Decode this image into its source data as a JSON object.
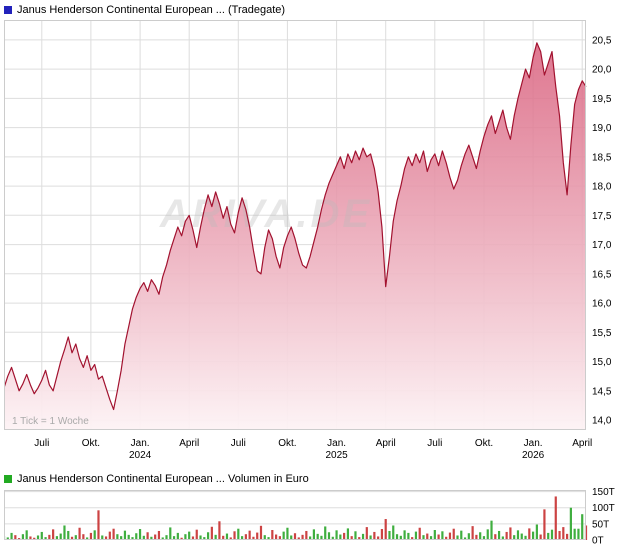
{
  "price_header": {
    "title": "Janus Henderson Continental European ... (Tradegate)",
    "marker_color": "#2222bb"
  },
  "volume_header": {
    "title": "Janus Henderson Continental European ... Volumen in Euro",
    "marker_color": "#22aa22"
  },
  "tick_note": "1 Tick = 1 Woche",
  "watermark": "ARIVA.DE",
  "colors": {
    "grid": "#dddddd",
    "plot_border": "#cccccc",
    "axis_text": "#000000",
    "tick_note_text": "#aaaaaa"
  },
  "chart_data": [
    {
      "type": "area",
      "title": "Janus Henderson Continental European ... (Tradegate)",
      "x_unit": "1 tick = 1 week, late April 2023 to April 2026",
      "ylabel": "Price (EUR)",
      "ylim": [
        13.83,
        20.84
      ],
      "line_color": "#a2122f",
      "fill_top": "#d9607d",
      "fill_bottom": "#fdf3f5",
      "y_ticks": [
        {
          "v": 20.5,
          "label": "20,5"
        },
        {
          "v": 20.0,
          "label": "20,0"
        },
        {
          "v": 19.5,
          "label": "19,5"
        },
        {
          "v": 19.0,
          "label": "19,0"
        },
        {
          "v": 18.5,
          "label": "18,5"
        },
        {
          "v": 18.0,
          "label": "18,0"
        },
        {
          "v": 17.5,
          "label": "17,5"
        },
        {
          "v": 17.0,
          "label": "17,0"
        },
        {
          "v": 16.5,
          "label": "16,5"
        },
        {
          "v": 16.0,
          "label": "16,0"
        },
        {
          "v": 15.5,
          "label": "15,5"
        },
        {
          "v": 15.0,
          "label": "15,0"
        },
        {
          "v": 14.5,
          "label": "14,5"
        },
        {
          "v": 14.0,
          "label": "14,0"
        }
      ],
      "x_ticks": [
        {
          "idx": 10,
          "label": "Juli"
        },
        {
          "idx": 23,
          "label": "Okt."
        },
        {
          "idx": 36,
          "label": "Jan.",
          "year": "2024"
        },
        {
          "idx": 49,
          "label": "April"
        },
        {
          "idx": 62,
          "label": "Juli"
        },
        {
          "idx": 75,
          "label": "Okt."
        },
        {
          "idx": 88,
          "label": "Jan.",
          "year": "2025"
        },
        {
          "idx": 101,
          "label": "April"
        },
        {
          "idx": 114,
          "label": "Juli"
        },
        {
          "idx": 127,
          "label": "Okt."
        },
        {
          "idx": 140,
          "label": "Jan.",
          "year": "2026"
        },
        {
          "idx": 153,
          "label": "April"
        }
      ],
      "values": [
        14.55,
        14.75,
        14.9,
        14.7,
        14.5,
        14.62,
        14.78,
        14.6,
        14.45,
        14.55,
        14.68,
        14.85,
        14.6,
        14.5,
        14.75,
        15.0,
        15.2,
        15.42,
        15.15,
        15.3,
        15.05,
        14.9,
        15.1,
        14.85,
        14.95,
        14.7,
        14.75,
        14.55,
        14.35,
        14.18,
        14.5,
        14.85,
        15.3,
        15.6,
        15.9,
        16.1,
        16.25,
        16.35,
        16.2,
        16.4,
        16.3,
        16.15,
        16.45,
        16.65,
        16.9,
        17.1,
        17.3,
        17.15,
        17.4,
        17.5,
        17.25,
        16.95,
        17.3,
        17.6,
        17.85,
        17.65,
        17.9,
        17.7,
        17.45,
        17.65,
        17.35,
        17.2,
        17.55,
        17.8,
        17.6,
        17.3,
        16.9,
        16.55,
        16.5,
        16.95,
        17.25,
        17.1,
        16.8,
        16.6,
        16.95,
        17.15,
        17.3,
        17.1,
        16.85,
        16.65,
        16.6,
        16.8,
        17.05,
        17.3,
        17.6,
        17.85,
        18.05,
        18.2,
        18.35,
        18.5,
        18.3,
        18.55,
        18.4,
        18.6,
        18.45,
        18.65,
        18.5,
        18.55,
        18.3,
        17.9,
        17.3,
        16.28,
        16.8,
        17.4,
        17.75,
        18.0,
        18.3,
        18.5,
        18.35,
        18.55,
        18.4,
        18.6,
        18.25,
        18.45,
        18.55,
        18.35,
        18.6,
        18.4,
        18.15,
        17.95,
        18.1,
        18.35,
        18.55,
        18.7,
        18.5,
        18.3,
        18.6,
        18.85,
        19.05,
        19.2,
        18.9,
        19.1,
        19.3,
        19.0,
        18.8,
        19.2,
        19.5,
        19.75,
        20.0,
        19.85,
        20.2,
        20.45,
        20.3,
        19.9,
        20.1,
        20.3,
        19.7,
        19.2,
        18.4,
        17.85,
        18.7,
        19.4,
        19.65,
        19.8,
        19.7
      ]
    },
    {
      "type": "bar",
      "title": "Janus Henderson Continental European ... Volumen in Euro",
      "ylabel": "Volumen in Euro (T = thousand)",
      "ylim": [
        0,
        155
      ],
      "up_color": "#3fae3f",
      "down_color": "#cc4343",
      "y_ticks": [
        {
          "v": 150,
          "label": "150T"
        },
        {
          "v": 100,
          "label": "100T"
        },
        {
          "v": 50,
          "label": "50T"
        },
        {
          "v": 0,
          "label": "0T"
        }
      ],
      "values": [
        12,
        8,
        22,
        15,
        6,
        18,
        30,
        11,
        7,
        14,
        25,
        9,
        16,
        33,
        12,
        20,
        45,
        28,
        10,
        15,
        38,
        18,
        8,
        22,
        30,
        92,
        14,
        11,
        26,
        35,
        18,
        12,
        29,
        16,
        9,
        21,
        34,
        13,
        24,
        10,
        17,
        28,
        8,
        15,
        39,
        12,
        22,
        7,
        18,
        26,
        11,
        32,
        14,
        9,
        24,
        41,
        16,
        58,
        13,
        20,
        8,
        27,
        35,
        12,
        18,
        29,
        10,
        23,
        44,
        15,
        9,
        31,
        17,
        12,
        26,
        38,
        14,
        21,
        8,
        16,
        28,
        11,
        33,
        19,
        13,
        42,
        24,
        10,
        30,
        17,
        22,
        36,
        12,
        27,
        9,
        19,
        40,
        14,
        25,
        11,
        34,
        65,
        28,
        45,
        18,
        13,
        30,
        22,
        9,
        26,
        38,
        15,
        20,
        12,
        31,
        17,
        27,
        10,
        23,
        35,
        14,
        29,
        8,
        21,
        43,
        16,
        24,
        12,
        33,
        60,
        18,
        28,
        11,
        25,
        39,
        15,
        30,
        20,
        13,
        36,
        26,
        48,
        17,
        95,
        22,
        32,
        135,
        28,
        40,
        19,
        100,
        35,
        35,
        80,
        45
      ]
    }
  ]
}
